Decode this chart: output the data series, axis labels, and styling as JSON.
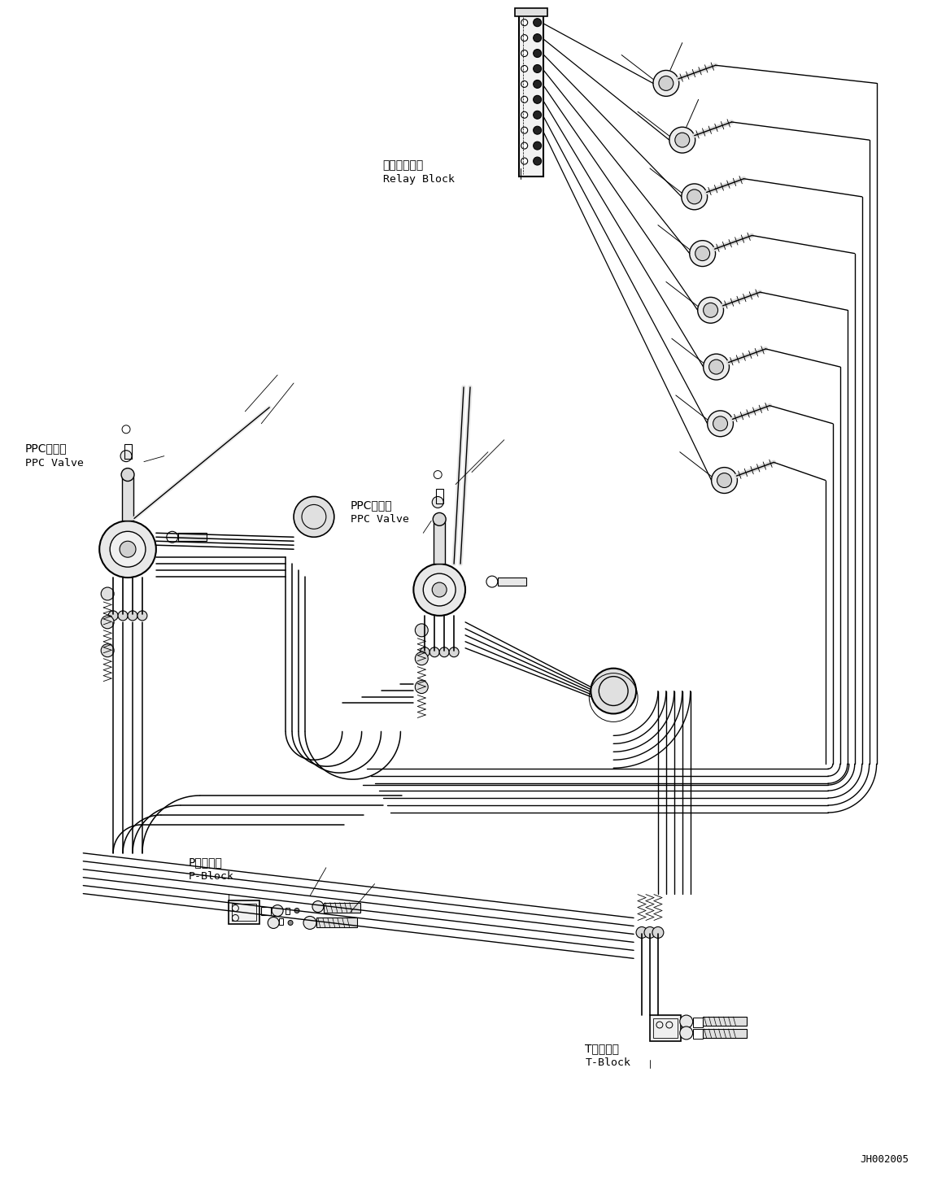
{
  "bg_color": "#ffffff",
  "line_color": "#000000",
  "figsize": [
    11.63,
    14.63
  ],
  "dpi": 100,
  "labels": {
    "relay_block_jp": "中継ブロック",
    "relay_block_en": "Relay Block",
    "ppc_valve1_jp": "PPCバルブ",
    "ppc_valve1_en": "PPC Valve",
    "ppc_valve2_jp": "PPCバルブ",
    "ppc_valve2_en": "PPC Valve",
    "p_block_jp": "Pブロック",
    "p_block_en": "P-Block",
    "t_block_jp": "Tブロック",
    "t_block_en": "T-Block",
    "diagram_code": "JH002005"
  }
}
